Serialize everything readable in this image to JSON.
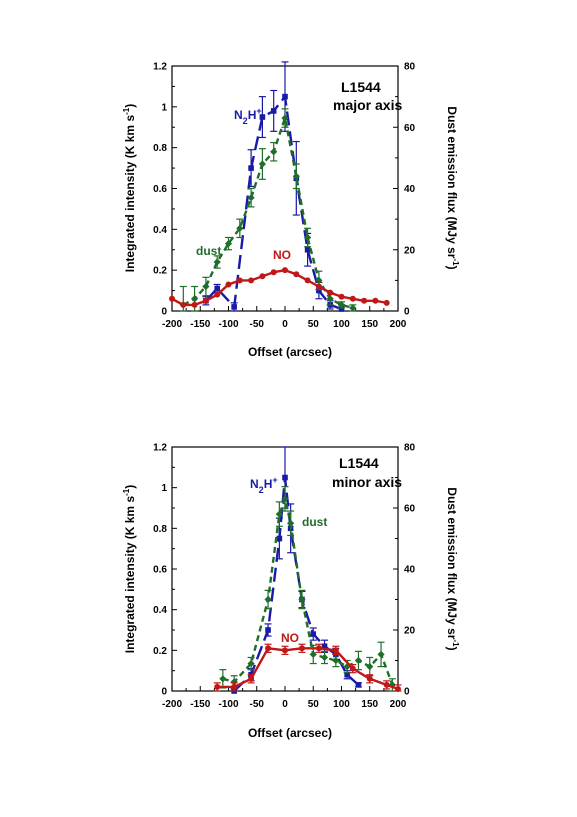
{
  "chart_data": [
    {
      "type": "line",
      "title": "L1544",
      "subtitle": "major axis",
      "xlabel": "Offset (arcsec)",
      "ylabel": "Integrated intensity (K km s-1)",
      "ylabel_main": "Integrated intensity (K km s",
      "ylabel_sup": "-1",
      "ylabel_end": ")",
      "y2label": "Dust emission flux (MJy sr-1)",
      "y2label_main": "Dust emission flux (MJy sr",
      "y2label_sup": "-1",
      "y2label_end": ")",
      "xlim": [
        -200,
        200
      ],
      "ylim": [
        0,
        1.2
      ],
      "y2lim": [
        0,
        80
      ],
      "x_ticks": [
        "-200",
        "-150",
        "-100",
        "-50",
        "0",
        "50",
        "100",
        "150",
        "200"
      ],
      "y_ticks": [
        "0",
        "0.2",
        "0.4",
        "0.6",
        "0.8",
        "1",
        "1.2"
      ],
      "y2_ticks": [
        "0",
        "20",
        "40",
        "60",
        "80"
      ],
      "grid": false,
      "series": [
        {
          "label_main": "N",
          "label_sub": "2",
          "label_mid": "H",
          "label_sup": "+",
          "color": "#1a1aa8",
          "dash": "14,6",
          "marker": "square",
          "axis": "left",
          "x": [
            -140,
            -120,
            -90,
            -60,
            -40,
            -20,
            0,
            20,
            40,
            60,
            80,
            100
          ],
          "y": [
            0.05,
            0.11,
            0.02,
            0.7,
            0.95,
            0.98,
            1.05,
            0.65,
            0.3,
            0.1,
            0.03,
            0.01
          ],
          "err": [
            0.02,
            0.02,
            0.02,
            0.09,
            0.1,
            0.1,
            0.17,
            0.18,
            0.08,
            0.04,
            0.02,
            0.02
          ]
        },
        {
          "name": "dust",
          "color": "#1f6e2a",
          "dash": "6,4",
          "marker": "diamond",
          "axis": "right",
          "x": [
            -180,
            -160,
            -140,
            -120,
            -100,
            -80,
            -60,
            -40,
            -20,
            0,
            20,
            40,
            60,
            80,
            100,
            120
          ],
          "y": [
            2,
            4,
            8,
            16,
            22,
            27,
            37,
            48,
            52,
            63,
            44,
            24,
            10,
            4,
            2,
            1
          ],
          "err": [
            6,
            4,
            3,
            2,
            2,
            3,
            3,
            5,
            3,
            3,
            4,
            3,
            3,
            2,
            1,
            1
          ]
        },
        {
          "name": "NO",
          "color": "#c01818",
          "dash": "",
          "marker": "circle",
          "axis": "left",
          "x": [
            -200,
            -180,
            -160,
            -140,
            -120,
            -100,
            -80,
            -60,
            -40,
            -20,
            0,
            20,
            40,
            60,
            80,
            100,
            120,
            140,
            160,
            180
          ],
          "y": [
            0.06,
            0.03,
            0.03,
            0.05,
            0.08,
            0.13,
            0.15,
            0.15,
            0.17,
            0.19,
            0.2,
            0.18,
            0.15,
            0.12,
            0.09,
            0.07,
            0.06,
            0.05,
            0.05,
            0.04
          ],
          "err": []
        }
      ]
    },
    {
      "type": "line",
      "title": "L1544",
      "subtitle": "minor axis",
      "xlabel": "Offset (arcsec)",
      "ylabel": "Integrated intensity (K km s-1)",
      "ylabel_main": "Integrated intensity (K km s",
      "ylabel_sup": "-1",
      "ylabel_end": ")",
      "y2label": "Dust emission flux (MJy sr-1)",
      "y2label_main": "Dust emission flux (MJy sr",
      "y2label_sup": "-1",
      "y2label_end": ")",
      "xlim": [
        -200,
        200
      ],
      "ylim": [
        0,
        1.2
      ],
      "y2lim": [
        0,
        80
      ],
      "x_ticks": [
        "-200",
        "-150",
        "-100",
        "-50",
        "0",
        "50",
        "100",
        "150",
        "200"
      ],
      "y_ticks": [
        "0",
        "0.2",
        "0.4",
        "0.6",
        "0.8",
        "1",
        "1.2"
      ],
      "y2_ticks": [
        "0",
        "20",
        "40",
        "60",
        "80"
      ],
      "grid": false,
      "series": [
        {
          "label_main": "N",
          "label_sub": "2",
          "label_mid": "H",
          "label_sup": "+",
          "color": "#1a1aa8",
          "dash": "14,6",
          "marker": "square",
          "axis": "left",
          "x": [
            -90,
            -60,
            -30,
            -10,
            0,
            10,
            30,
            50,
            70,
            90,
            110,
            130
          ],
          "y": [
            0.0,
            0.08,
            0.3,
            0.75,
            1.05,
            0.8,
            0.45,
            0.28,
            0.22,
            0.18,
            0.08,
            0.03
          ],
          "err": [
            0.01,
            0.03,
            0.03,
            0.1,
            0.15,
            0.12,
            0.04,
            0.03,
            0.03,
            0.03,
            0.02,
            0.01
          ]
        },
        {
          "name": "dust",
          "color": "#1f6e2a",
          "dash": "6,4",
          "marker": "diamond",
          "axis": "right",
          "x": [
            -110,
            -90,
            -60,
            -30,
            -10,
            0,
            10,
            30,
            50,
            70,
            90,
            110,
            130,
            150,
            170,
            190
          ],
          "y": [
            4,
            3,
            9,
            30,
            58,
            63,
            55,
            30,
            12,
            11,
            10,
            8,
            10,
            8,
            12,
            2
          ],
          "err": [
            3,
            2,
            2,
            3,
            4,
            4,
            4,
            3,
            3,
            2,
            2,
            2,
            3,
            3,
            4,
            2
          ]
        },
        {
          "name": "NO",
          "color": "#c01818",
          "dash": "",
          "marker": "circle",
          "axis": "left",
          "x": [
            -120,
            -90,
            -60,
            -30,
            0,
            30,
            60,
            90,
            120,
            150,
            180,
            200
          ],
          "y": [
            0.02,
            0.02,
            0.06,
            0.21,
            0.2,
            0.21,
            0.21,
            0.2,
            0.11,
            0.06,
            0.03,
            0.01
          ],
          "err": [
            0.02,
            0.02,
            0.02,
            0.02,
            0.02,
            0.02,
            0.02,
            0.02,
            0.02,
            0.02,
            0.02,
            0.02
          ]
        }
      ]
    }
  ]
}
